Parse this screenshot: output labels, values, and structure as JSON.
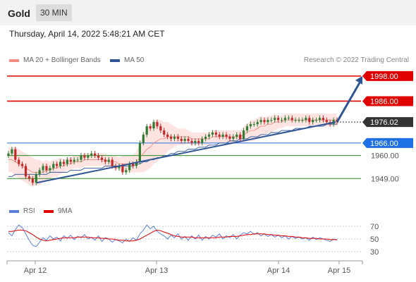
{
  "header": {
    "title": "Gold",
    "interval": "30 MIN"
  },
  "timestamp": "Thursday, April 14, 2022 5:48:21 AM CET",
  "legend": {
    "ma20": {
      "label": "MA 20 + Bollinger Bands",
      "color": "#f28b82"
    },
    "ma50": {
      "label": "MA 50",
      "color": "#2f5597"
    }
  },
  "credit": "Research © 2022 Trading Central",
  "rsi_legend": {
    "rsi": {
      "label": "RSI",
      "color": "#5b7fd8"
    },
    "ma9": {
      "label": "9MA",
      "color": "#e00000"
    }
  },
  "chart_data": [
    {
      "type": "candlestick",
      "title": "Gold",
      "price_range": [
        1940,
        2002
      ],
      "x_ticks": [
        "Apr 12",
        "Apr 13",
        "Apr 14",
        "Apr 15"
      ],
      "levels": [
        {
          "value": 1998.0,
          "label": "1998.00",
          "kind": "resistance",
          "color": "#e00000"
        },
        {
          "value": 1986.0,
          "label": "1986.00",
          "kind": "resistance",
          "color": "#e00000"
        },
        {
          "value": 1976.02,
          "label": "1976.02",
          "kind": "last",
          "color": "#333333"
        },
        {
          "value": 1966.0,
          "label": "1966.00",
          "kind": "pivot",
          "color": "#1f6fe5"
        },
        {
          "value": 1960.0,
          "label": "1960.00",
          "kind": "support",
          "color": "#2e8b22"
        },
        {
          "value": 1949.0,
          "label": "1949.00",
          "kind": "support",
          "color": "#2e8b22"
        }
      ],
      "close": [
        1961,
        1963,
        1958,
        1956,
        1955,
        1950,
        1949,
        1947,
        1951,
        1953,
        1955,
        1953,
        1954,
        1956,
        1955,
        1957,
        1956,
        1958,
        1957,
        1958,
        1958,
        1960,
        1959,
        1960,
        1961,
        1960,
        1959,
        1958,
        1957,
        1958,
        1955,
        1954,
        1955,
        1952,
        1953,
        1956,
        1955,
        1957,
        1966,
        1970,
        1974,
        1973,
        1976,
        1974,
        1972,
        1970,
        1969,
        1968,
        1969,
        1968,
        1967,
        1968,
        1967,
        1966,
        1967,
        1966,
        1968,
        1969,
        1970,
        1971,
        1970,
        1969,
        1970,
        1969,
        1968,
        1969,
        1970,
        1968,
        1972,
        1974,
        1975,
        1975,
        1976,
        1977,
        1976,
        1977,
        1977,
        1978,
        1977,
        1977,
        1978,
        1978,
        1977,
        1977,
        1977,
        1977,
        1978,
        1976,
        1977,
        1977,
        1978,
        1977,
        1976,
        1975,
        1977,
        1976
      ],
      "ma20": [
        1958,
        1958,
        1957,
        1956,
        1955,
        1954,
        1953,
        1952,
        1952,
        1952,
        1952,
        1953,
        1953,
        1954,
        1954,
        1955,
        1955,
        1956,
        1956,
        1957,
        1957,
        1957,
        1958,
        1958,
        1958,
        1958,
        1958,
        1958,
        1958,
        1957,
        1957,
        1957,
        1956,
        1956,
        1956,
        1956,
        1956,
        1957,
        1959,
        1961,
        1963,
        1964,
        1966,
        1967,
        1968,
        1968,
        1969,
        1969,
        1969,
        1969,
        1969,
        1969,
        1969,
        1968,
        1968,
        1968,
        1968,
        1968,
        1968,
        1969,
        1969,
        1969,
        1969,
        1969,
        1969,
        1969,
        1969,
        1969,
        1970,
        1971,
        1972,
        1972,
        1973,
        1974,
        1974,
        1975,
        1975,
        1976,
        1976,
        1976,
        1977,
        1977,
        1977,
        1977,
        1977,
        1977,
        1977,
        1977,
        1977,
        1977,
        1977,
        1977,
        1977,
        1977,
        1977,
        1977
      ],
      "bb_width": [
        6,
        6,
        7,
        7,
        7,
        7,
        7,
        7,
        6,
        6,
        5,
        5,
        4,
        4,
        4,
        4,
        3,
        3,
        3,
        3,
        3,
        3,
        3,
        3,
        3,
        3,
        3,
        3,
        3,
        3,
        3,
        3,
        3,
        4,
        4,
        4,
        4,
        5,
        7,
        9,
        10,
        10,
        10,
        10,
        9,
        8,
        7,
        6,
        5,
        4,
        4,
        4,
        3,
        3,
        3,
        3,
        3,
        3,
        3,
        3,
        3,
        3,
        3,
        3,
        3,
        3,
        3,
        3,
        4,
        4,
        5,
        5,
        5,
        5,
        4,
        4,
        4,
        4,
        3,
        3,
        3,
        3,
        3,
        3,
        3,
        3,
        3,
        3,
        3,
        3,
        3,
        3,
        3,
        3,
        3,
        3
      ],
      "ma50": [
        1950,
        1950,
        1951,
        1951,
        1951,
        1951,
        1951,
        1951,
        1951,
        1951,
        1951,
        1951,
        1952,
        1952,
        1952,
        1952,
        1952,
        1952,
        1953,
        1953,
        1953,
        1953,
        1954,
        1954,
        1954,
        1954,
        1954,
        1954,
        1955,
        1955,
        1955,
        1955,
        1955,
        1955,
        1955,
        1955,
        1955,
        1956,
        1956,
        1957,
        1957,
        1958,
        1958,
        1959,
        1959,
        1960,
        1960,
        1961,
        1961,
        1962,
        1962,
        1962,
        1963,
        1963,
        1963,
        1964,
        1964,
        1964,
        1965,
        1965,
        1965,
        1966,
        1966,
        1966,
        1967,
        1967,
        1967,
        1968,
        1968,
        1968,
        1969,
        1969,
        1969,
        1970,
        1970,
        1970,
        1971,
        1971,
        1971,
        1972,
        1972,
        1972,
        1972,
        1973,
        1973,
        1973,
        1973,
        1974,
        1974,
        1974,
        1974,
        1974,
        1975,
        1975,
        1975,
        1975
      ],
      "trendline": {
        "from": 1947,
        "to": 1976
      },
      "projection": {
        "from": 1976.02,
        "to": 1998.0
      }
    },
    {
      "type": "line",
      "title": "RSI",
      "y_ticks": [
        70,
        50,
        30
      ],
      "y_range": [
        20,
        80
      ],
      "series": [
        {
          "name": "RSI",
          "color": "#5b7fd8",
          "values": [
            60,
            55,
            65,
            72,
            68,
            58,
            48,
            40,
            38,
            45,
            52,
            48,
            55,
            50,
            53,
            47,
            55,
            51,
            56,
            49,
            54,
            52,
            57,
            50,
            53,
            48,
            55,
            46,
            52,
            50,
            45,
            49,
            47,
            44,
            50,
            46,
            52,
            48,
            58,
            64,
            72,
            66,
            70,
            62,
            58,
            55,
            50,
            56,
            52,
            58,
            50,
            54,
            48,
            55,
            50,
            56,
            48,
            54,
            50,
            56,
            53,
            58,
            50,
            55,
            52,
            57,
            50,
            56,
            60,
            58,
            62,
            57,
            60,
            55,
            58,
            54,
            57,
            53,
            56,
            52,
            55,
            50,
            54,
            51,
            53,
            50,
            52,
            48,
            53,
            49,
            52,
            50,
            48,
            46,
            50,
            48
          ]
        },
        {
          "name": "9MA",
          "color": "#e00000",
          "values": [
            62,
            62,
            63,
            64,
            64,
            63,
            60,
            57,
            53,
            50,
            48,
            47,
            48,
            49,
            50,
            51,
            52,
            52,
            52,
            52,
            53,
            53,
            53,
            53,
            52,
            52,
            52,
            51,
            51,
            50,
            50,
            49,
            48,
            48,
            47,
            47,
            47,
            48,
            50,
            53,
            56,
            59,
            62,
            64,
            63,
            61,
            59,
            57,
            55,
            54,
            53,
            53,
            53,
            53,
            52,
            52,
            52,
            52,
            52,
            52,
            52,
            53,
            53,
            53,
            54,
            54,
            54,
            55,
            56,
            57,
            57,
            58,
            58,
            58,
            58,
            57,
            57,
            56,
            56,
            55,
            55,
            54,
            54,
            53,
            53,
            52,
            52,
            51,
            51,
            51,
            50,
            50,
            50,
            49,
            49,
            49
          ]
        }
      ]
    }
  ]
}
